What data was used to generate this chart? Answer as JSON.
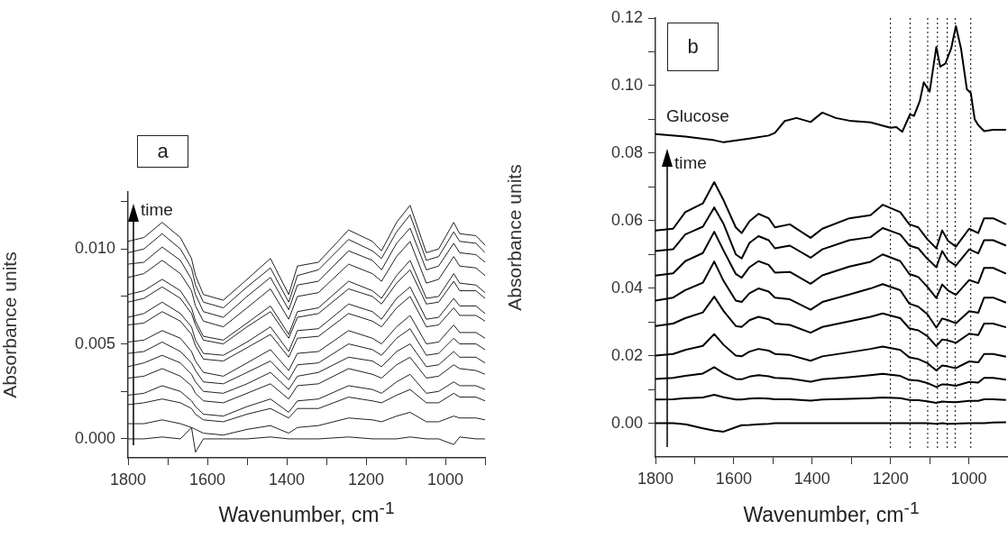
{
  "chart_data": [
    {
      "type": "line",
      "xlabel": "Wavenumber, cm$^{-1}$",
      "ylabel": "Absorbance units",
      "annotations": [
        "a",
        "time"
      ],
      "marker": "none",
      "grid": false,
      "xlim": [
        1800,
        900
      ],
      "xticks": [
        1800,
        {
          "value": 1700,
          "label": null
        },
        1600,
        {
          "value": 1500,
          "label": null
        },
        1400,
        {
          "value": 1300,
          "label": null
        },
        1200,
        {
          "value": 1100,
          "label": null
        },
        1000,
        {
          "value": 900,
          "label": null
        }
      ],
      "ylim": [
        -0.001,
        0.013
      ],
      "yticks": [
        {
          "value": 0,
          "label": "0.000"
        },
        {
          "value": 0.0025,
          "label": null
        },
        {
          "value": 0.005,
          "label": "0.005"
        },
        {
          "value": 0.0075,
          "label": null
        },
        {
          "value": 0.01,
          "label": "0.010"
        },
        {
          "value": 0.0125,
          "label": null
        }
      ],
      "x": [
        1800,
        1760,
        1714,
        1668,
        1640,
        1630,
        1610,
        1560,
        1500,
        1441,
        1395,
        1373,
        1320,
        1244,
        1184,
        1161,
        1123,
        1089,
        1048,
        1017,
        979,
        964,
        923,
        900
      ],
      "series": [
        {
          "color": "#222222",
          "values": [
            0.0104,
            0.0106,
            0.0114,
            0.0106,
            0.0095,
            0.0086,
            0.0076,
            0.0073,
            0.0084,
            0.0095,
            0.0076,
            0.0091,
            0.0093,
            0.011,
            0.0104,
            0.0099,
            0.0114,
            0.0123,
            0.0098,
            0.01,
            0.0114,
            0.0108,
            0.0107,
            0.0102
          ]
        },
        {
          "color": "#222222",
          "values": [
            0.0098,
            0.01,
            0.0108,
            0.01,
            0.009,
            0.0081,
            0.0072,
            0.0069,
            0.008,
            0.009,
            0.0072,
            0.0086,
            0.0089,
            0.0105,
            0.0099,
            0.0095,
            0.0109,
            0.0118,
            0.0094,
            0.0096,
            0.0109,
            0.0104,
            0.0103,
            0.0098
          ]
        },
        {
          "color": "#222222",
          "values": [
            0.0092,
            0.0093,
            0.0101,
            0.0094,
            0.0084,
            0.0076,
            0.0067,
            0.0064,
            0.0075,
            0.0085,
            0.0068,
            0.0081,
            0.0083,
            0.0099,
            0.0094,
            0.0089,
            0.0103,
            0.0111,
            0.0089,
            0.0091,
            0.0103,
            0.0098,
            0.0097,
            0.0093
          ]
        },
        {
          "color": "#222222",
          "values": [
            0.0085,
            0.0087,
            0.0094,
            0.0087,
            0.0078,
            0.007,
            0.0062,
            0.0059,
            0.0069,
            0.0079,
            0.0063,
            0.0075,
            0.0077,
            0.0092,
            0.0087,
            0.0083,
            0.0096,
            0.0104,
            0.0082,
            0.0084,
            0.0096,
            0.0091,
            0.009,
            0.0086
          ]
        },
        {
          "color": "#222222",
          "values": [
            0.0076,
            0.0078,
            0.0084,
            0.0078,
            0.0069,
            0.0062,
            0.0054,
            0.0052,
            0.0061,
            0.007,
            0.0055,
            0.0067,
            0.0069,
            0.0083,
            0.0078,
            0.0074,
            0.0086,
            0.0094,
            0.0074,
            0.0075,
            0.0087,
            0.0082,
            0.0081,
            0.0077
          ]
        },
        {
          "color": "#222222",
          "values": [
            0.0072,
            0.0074,
            0.008,
            0.0074,
            0.0066,
            0.006,
            0.0052,
            0.005,
            0.0059,
            0.0067,
            0.0053,
            0.0064,
            0.0066,
            0.0079,
            0.0075,
            0.0071,
            0.0082,
            0.0089,
            0.0071,
            0.0072,
            0.0083,
            0.0078,
            0.0078,
            0.0074
          ]
        },
        {
          "color": "#222222",
          "values": [
            0.0064,
            0.0066,
            0.0072,
            0.0066,
            0.0059,
            0.0052,
            0.0045,
            0.0044,
            0.0051,
            0.0059,
            0.0046,
            0.0057,
            0.0058,
            0.0071,
            0.0067,
            0.0063,
            0.0074,
            0.008,
            0.0063,
            0.0064,
            0.0074,
            0.007,
            0.007,
            0.0066
          ]
        },
        {
          "color": "#222222",
          "values": [
            0.006,
            0.0061,
            0.0067,
            0.0062,
            0.0055,
            0.0049,
            0.0042,
            0.0041,
            0.0048,
            0.0055,
            0.0043,
            0.0053,
            0.0054,
            0.0066,
            0.0062,
            0.0059,
            0.0069,
            0.0075,
            0.0059,
            0.006,
            0.0069,
            0.0065,
            0.0065,
            0.0062
          ]
        },
        {
          "color": "#222222",
          "values": [
            0.0051,
            0.0052,
            0.0057,
            0.0053,
            0.0046,
            0.0041,
            0.0035,
            0.0033,
            0.004,
            0.0047,
            0.0036,
            0.0045,
            0.0046,
            0.0057,
            0.0053,
            0.005,
            0.0059,
            0.0065,
            0.005,
            0.0051,
            0.006,
            0.0056,
            0.0056,
            0.0053
          ]
        },
        {
          "color": "#222222",
          "values": [
            0.0045,
            0.0046,
            0.0051,
            0.0046,
            0.004,
            0.0036,
            0.003,
            0.0029,
            0.0035,
            0.0041,
            0.0031,
            0.0039,
            0.004,
            0.005,
            0.0047,
            0.0044,
            0.0053,
            0.0058,
            0.0044,
            0.0045,
            0.0053,
            0.005,
            0.005,
            0.0047
          ]
        },
        {
          "color": "#222222",
          "values": [
            0.0038,
            0.004,
            0.0044,
            0.004,
            0.0034,
            0.003,
            0.0025,
            0.0024,
            0.0029,
            0.0035,
            0.0026,
            0.0033,
            0.0035,
            0.0043,
            0.0041,
            0.0038,
            0.0046,
            0.005,
            0.0038,
            0.0039,
            0.0046,
            0.0043,
            0.0043,
            0.004
          ]
        },
        {
          "color": "#222222",
          "values": [
            0.0032,
            0.0033,
            0.0037,
            0.0033,
            0.0028,
            0.0024,
            0.002,
            0.0019,
            0.0024,
            0.0029,
            0.0021,
            0.0028,
            0.0029,
            0.0037,
            0.0034,
            0.0032,
            0.0039,
            0.0043,
            0.0032,
            0.0033,
            0.0039,
            0.0037,
            0.0036,
            0.0034
          ]
        },
        {
          "color": "#222222",
          "values": [
            0.0023,
            0.0024,
            0.0028,
            0.0025,
            0.002,
            0.0017,
            0.0013,
            0.0012,
            0.0017,
            0.0021,
            0.0014,
            0.002,
            0.0021,
            0.0028,
            0.0026,
            0.0024,
            0.003,
            0.0034,
            0.0024,
            0.0025,
            0.003,
            0.0028,
            0.0028,
            0.0026
          ]
        },
        {
          "color": "#222222",
          "values": [
            0.0018,
            0.0019,
            0.0021,
            0.0019,
            0.0016,
            0.0013,
            0.001,
            0.0009,
            0.0013,
            0.0016,
            0.0011,
            0.0016,
            0.0016,
            0.0022,
            0.002,
            0.0019,
            0.0023,
            0.0026,
            0.0019,
            0.0019,
            0.0024,
            0.0022,
            0.0022,
            0.002
          ]
        },
        {
          "color": "#222222",
          "values": [
            0.0008,
            0.0008,
            0.001,
            0.0008,
            0.0006,
            0.0005,
            0.0003,
            0.0002,
            0.0005,
            0.0007,
            0.0003,
            0.0006,
            0.0007,
            0.0011,
            0.001,
            0.0009,
            0.0012,
            0.0014,
            0.0009,
            0.0009,
            0.0012,
            0.0011,
            0.0011,
            0.001
          ]
        },
        {
          "color": "#222222",
          "values": [
            0.0,
            0.0,
            0.0001,
            0.0,
            0.0006,
            -0.0007,
            0.0,
            0.0,
            0.0,
            0.0001,
            0.0,
            0.0,
            0.0,
            0.0001,
            0.0,
            0.0,
            0.0,
            0.0001,
            0.0,
            0.0,
            -0.0003,
            0.0001,
            0.0,
            0.0
          ]
        }
      ]
    },
    {
      "type": "line",
      "xlabel": "Wavenumber, cm$^{-1}$",
      "ylabel": "Absorbance units",
      "annotations": [
        "b",
        "time"
      ],
      "marker": "none",
      "grid": false,
      "xlim": [
        1800,
        900
      ],
      "xticks": [
        1800,
        {
          "value": 1700,
          "label": null
        },
        1600,
        {
          "value": 1500,
          "label": null
        },
        1400,
        {
          "value": 1300,
          "label": null
        },
        1200,
        {
          "value": 1100,
          "label": null
        },
        1000
      ],
      "ylim": [
        -0.01,
        0.12
      ],
      "yticks": [
        {
          "value": 0,
          "label": "0.00"
        },
        {
          "value": 0.01,
          "label": null
        },
        {
          "value": 0.02,
          "label": "0.02"
        },
        {
          "value": 0.03,
          "label": null
        },
        {
          "value": 0.04,
          "label": "0.04"
        },
        {
          "value": 0.05,
          "label": null
        },
        {
          "value": 0.06,
          "label": "0.06"
        },
        {
          "value": 0.07,
          "label": null
        },
        {
          "value": 0.08,
          "label": "0.08"
        },
        {
          "value": 0.09,
          "label": null
        },
        {
          "value": 0.1,
          "label": "0.10"
        },
        {
          "value": 0.11,
          "label": null
        },
        {
          "value": 0.12,
          "label": "0.12"
        }
      ],
      "ref_lines": [
        {
          "axis": "x",
          "value": 1200,
          "color": "#000000",
          "line_style": "dotted"
        },
        {
          "axis": "x",
          "value": 1150,
          "color": "#000000",
          "line_style": "dotted"
        },
        {
          "axis": "x",
          "value": 1105,
          "color": "#000000",
          "line_style": "dotted"
        },
        {
          "axis": "x",
          "value": 1080,
          "color": "#000000",
          "line_style": "dotted"
        },
        {
          "axis": "x",
          "value": 1055,
          "color": "#000000",
          "line_style": "dotted"
        },
        {
          "axis": "x",
          "value": 1035,
          "color": "#000000",
          "line_style": "dotted"
        },
        {
          "axis": "x",
          "value": 995,
          "color": "#000000",
          "line_style": "dotted"
        }
      ],
      "x": [
        1800,
        1755,
        1724,
        1679,
        1650,
        1626,
        1595,
        1580,
        1560,
        1537,
        1511,
        1495,
        1457,
        1404,
        1374,
        1305,
        1251,
        1220,
        1175,
        1152,
        1129,
        1106,
        1083,
        1068,
        1053,
        1033,
        999,
        976,
        961,
        938,
        905
      ],
      "series": [
        {
          "name": "Glucose",
          "color": "#000000",
          "x": [
            1800,
            1724,
            1650,
            1626,
            1560,
            1511,
            1495,
            1470,
            1440,
            1404,
            1374,
            1340,
            1305,
            1251,
            1200,
            1185,
            1170,
            1150,
            1140,
            1125,
            1115,
            1100,
            1083,
            1073,
            1060,
            1045,
            1033,
            1020,
            1005,
            995,
            985,
            976,
            961,
            938,
            905
          ],
          "values": [
            0.0856,
            0.0849,
            0.0838,
            0.0832,
            0.0843,
            0.0852,
            0.086,
            0.0895,
            0.0904,
            0.0892,
            0.092,
            0.0904,
            0.0896,
            0.0891,
            0.0875,
            0.0877,
            0.0863,
            0.0915,
            0.091,
            0.0955,
            0.101,
            0.0982,
            0.1114,
            0.1056,
            0.1065,
            0.111,
            0.1176,
            0.111,
            0.0989,
            0.0978,
            0.09,
            0.0883,
            0.0865,
            0.0869,
            0.0869
          ]
        },
        {
          "color": "#000000",
          "values": [
            0.0571,
            0.0576,
            0.0625,
            0.0651,
            0.0714,
            0.066,
            0.058,
            0.0563,
            0.0598,
            0.062,
            0.0607,
            0.058,
            0.0589,
            0.0549,
            0.0576,
            0.0607,
            0.0616,
            0.0647,
            0.0625,
            0.0589,
            0.058,
            0.0545,
            0.0518,
            0.0571,
            0.054,
            0.0523,
            0.0576,
            0.0563,
            0.0607,
            0.0607,
            0.0589
          ]
        },
        {
          "color": "#000000",
          "values": [
            0.051,
            0.0515,
            0.0559,
            0.0582,
            0.0639,
            0.059,
            0.05,
            0.0488,
            0.0534,
            0.0554,
            0.0542,
            0.0518,
            0.0526,
            0.049,
            0.0515,
            0.0542,
            0.0551,
            0.0578,
            0.0559,
            0.0526,
            0.0518,
            0.0487,
            0.0462,
            0.051,
            0.0482,
            0.0467,
            0.0515,
            0.0503,
            0.0542,
            0.0542,
            0.0526
          ]
        },
        {
          "color": "#000000",
          "values": [
            0.0437,
            0.0444,
            0.048,
            0.0504,
            0.0567,
            0.0511,
            0.0442,
            0.0431,
            0.0462,
            0.048,
            0.0469,
            0.0446,
            0.0448,
            0.0413,
            0.0438,
            0.0464,
            0.0478,
            0.05,
            0.048,
            0.0442,
            0.0433,
            0.0404,
            0.0371,
            0.0411,
            0.0393,
            0.038,
            0.0424,
            0.0415,
            0.046,
            0.046,
            0.0443
          ]
        },
        {
          "color": "#000000",
          "values": [
            0.0363,
            0.0372,
            0.0394,
            0.0416,
            0.0479,
            0.0421,
            0.0363,
            0.0359,
            0.0385,
            0.0399,
            0.039,
            0.0372,
            0.0367,
            0.0336,
            0.0359,
            0.0381,
            0.0399,
            0.0412,
            0.0394,
            0.0354,
            0.0345,
            0.0323,
            0.0283,
            0.031,
            0.0305,
            0.0296,
            0.0332,
            0.0327,
            0.0372,
            0.0372,
            0.0357
          ]
        },
        {
          "color": "#000000",
          "values": [
            0.0288,
            0.0295,
            0.0311,
            0.0328,
            0.0375,
            0.0332,
            0.0288,
            0.0285,
            0.0305,
            0.0315,
            0.0308,
            0.0295,
            0.0291,
            0.0268,
            0.0285,
            0.0302,
            0.0315,
            0.0325,
            0.0311,
            0.0281,
            0.0275,
            0.0258,
            0.0228,
            0.0248,
            0.0245,
            0.0238,
            0.0265,
            0.0261,
            0.0295,
            0.0295,
            0.0284
          ]
        },
        {
          "color": "#000000",
          "values": [
            0.02,
            0.0205,
            0.0217,
            0.0229,
            0.0264,
            0.0232,
            0.02,
            0.0198,
            0.0212,
            0.022,
            0.0215,
            0.0205,
            0.0202,
            0.0185,
            0.0198,
            0.021,
            0.022,
            0.0227,
            0.0217,
            0.0195,
            0.019,
            0.0178,
            0.0156,
            0.0171,
            0.0168,
            0.0163,
            0.0183,
            0.018,
            0.0205,
            0.0205,
            0.0197
          ]
        },
        {
          "color": "#000000",
          "values": [
            0.0131,
            0.0134,
            0.014,
            0.0147,
            0.0166,
            0.0148,
            0.0131,
            0.013,
            0.0138,
            0.0142,
            0.0139,
            0.0134,
            0.0132,
            0.0123,
            0.013,
            0.0136,
            0.0142,
            0.0146,
            0.014,
            0.0128,
            0.0126,
            0.0119,
            0.0107,
            0.0115,
            0.0114,
            0.0111,
            0.0122,
            0.012,
            0.0134,
            0.0134,
            0.0129
          ]
        },
        {
          "color": "#000000",
          "values": [
            0.007,
            0.0071,
            0.0074,
            0.0076,
            0.0084,
            0.0077,
            0.007,
            0.007,
            0.0073,
            0.0074,
            0.0073,
            0.0071,
            0.0071,
            0.0067,
            0.007,
            0.0072,
            0.0074,
            0.0076,
            0.0074,
            0.0069,
            0.0068,
            0.0065,
            0.006,
            0.0064,
            0.0063,
            0.0062,
            0.0066,
            0.0066,
            0.0071,
            0.0071,
            0.0069
          ]
        },
        {
          "color": "#000000",
          "values": [
            0.0,
            0.0,
            -0.0003,
            -0.0015,
            -0.0022,
            -0.0025,
            -0.0012,
            -0.0006,
            -0.0005,
            -0.0003,
            -0.0002,
            0.0,
            0.0,
            0.0,
            0.0,
            0.0,
            0.0,
            0.0,
            0.0,
            0.0,
            0.0,
            0.0,
            -0.0002,
            0.0,
            -0.0002,
            -0.0001,
            0.0,
            0.0,
            0.0,
            0.0002,
            0.0003
          ]
        }
      ]
    }
  ]
}
